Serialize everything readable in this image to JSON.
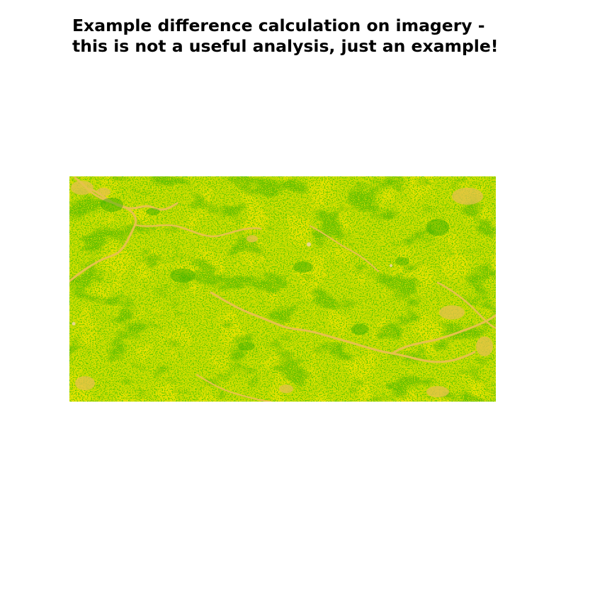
{
  "title": {
    "line1": "Example difference calculation on imagery -",
    "line2": "this is not a useful analysis, just an example!"
  },
  "raster": {
    "palette": {
      "base": "#c8dc00",
      "green": "#62c800",
      "dark_green": "#2faa00",
      "yellow": "#e6e200",
      "orange": "#e6c24c",
      "pale": "#e8d98a"
    }
  }
}
